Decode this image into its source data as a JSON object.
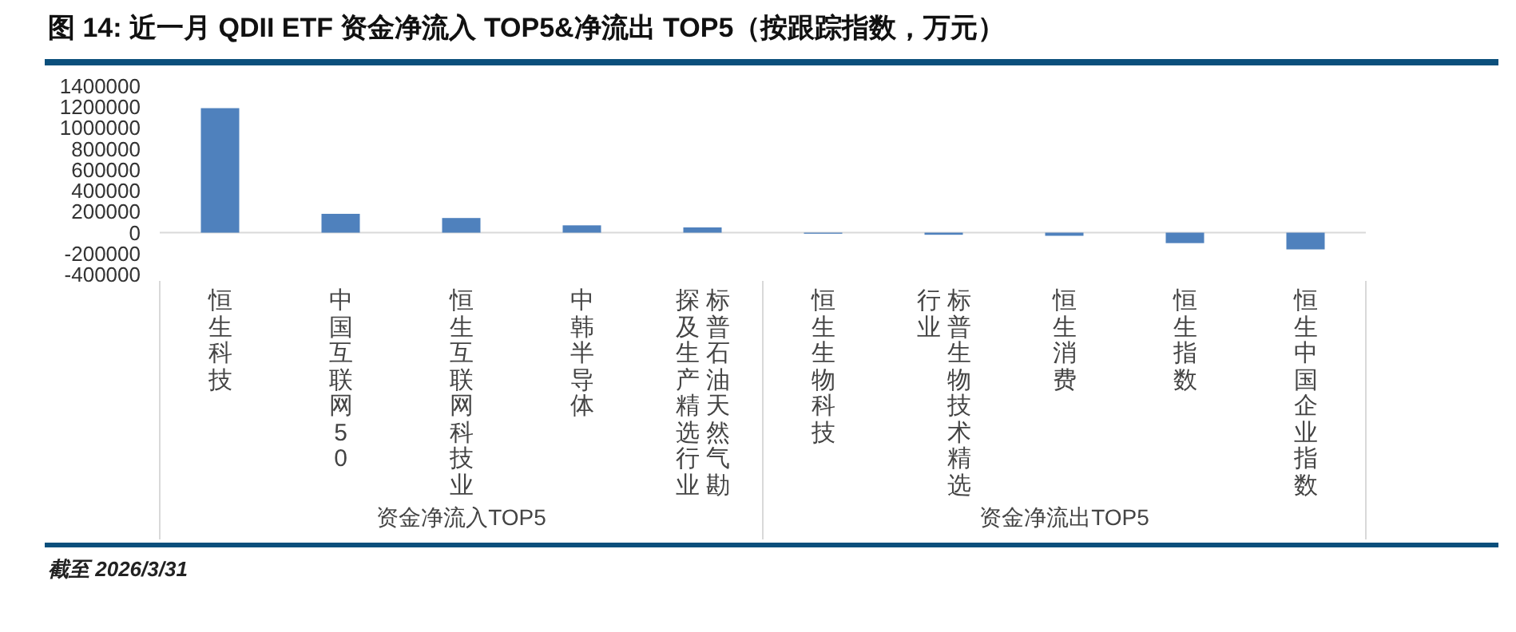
{
  "chart_data": {
    "type": "bar",
    "title": "图 14: 近一月 QDII ETF 资金净流入 TOP5&净流出 TOP5（按跟踪指数，万元）",
    "categories": [
      "恒生科技",
      "中国互联网50",
      "恒生互联网科技业",
      "中韩半导体",
      "标普石油天然气勘探及生产精选行业",
      "恒生生物科技",
      "标普生物技术精选行业",
      "恒生消费",
      "恒生指数",
      "恒生中国企业指数"
    ],
    "values": [
      1190000,
      180000,
      140000,
      70000,
      50000,
      -10000,
      -20000,
      -30000,
      -100000,
      -160000
    ],
    "color": "#4f81bd",
    "ylim": [
      -400000,
      1400000
    ],
    "yticks": [
      -400000,
      -200000,
      0,
      200000,
      400000,
      600000,
      800000,
      1000000,
      1200000,
      1400000
    ],
    "grid": false,
    "annotations": [
      "资金净流入TOP5",
      "资金净流出TOP5",
      "截至 2026/3/31"
    ]
  }
}
